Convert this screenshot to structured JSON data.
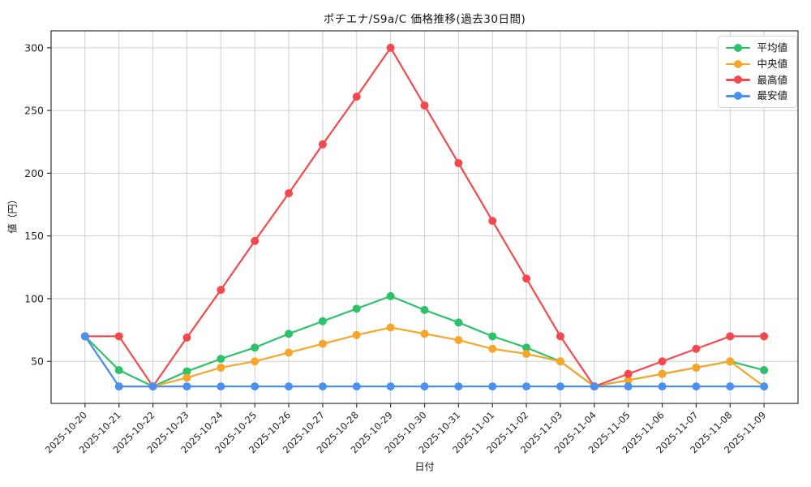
{
  "chart_data": {
    "type": "line",
    "title": "ポチエナ/S9a/C 価格推移(過去30日間)",
    "xlabel": "日付",
    "ylabel": "値（円）",
    "x": [
      "2025-10-20",
      "2025-10-21",
      "2025-10-22",
      "2025-10-23",
      "2025-10-24",
      "2025-10-25",
      "2025-10-26",
      "2025-10-27",
      "2025-10-28",
      "2025-10-29",
      "2025-10-30",
      "2025-10-31",
      "2025-11-01",
      "2025-11-02",
      "2025-11-03",
      "2025-11-04",
      "2025-11-05",
      "2025-11-06",
      "2025-11-07",
      "2025-11-08",
      "2025-11-09"
    ],
    "series": [
      {
        "name": "平均値",
        "color": "#2dc26a",
        "values": [
          70,
          43,
          30,
          42,
          52,
          61,
          72,
          82,
          92,
          102,
          91,
          81,
          70,
          61,
          50,
          30,
          35,
          40,
          45,
          50,
          43
        ]
      },
      {
        "name": "中央値",
        "color": "#f7a629",
        "values": [
          70,
          30,
          30,
          37,
          45,
          50,
          57,
          64,
          71,
          77,
          72,
          67,
          60,
          56,
          50,
          30,
          35,
          40,
          45,
          50,
          30
        ]
      },
      {
        "name": "最高値",
        "color": "#f5484d",
        "values": [
          70,
          70,
          30,
          69,
          107,
          146,
          184,
          223,
          261,
          300,
          254,
          208,
          162,
          116,
          70,
          30,
          40,
          50,
          60,
          70,
          70
        ]
      },
      {
        "name": "最安値",
        "color": "#4a90f2",
        "values": [
          70,
          30,
          30,
          30,
          30,
          30,
          30,
          30,
          30,
          30,
          30,
          30,
          30,
          30,
          30,
          30,
          30,
          30,
          30,
          30,
          30
        ]
      }
    ],
    "ylim": [
      16.5,
      313.5
    ],
    "yticks": [
      50,
      100,
      150,
      200,
      250,
      300
    ],
    "grid": true,
    "legend_position": "top-right-inside"
  }
}
